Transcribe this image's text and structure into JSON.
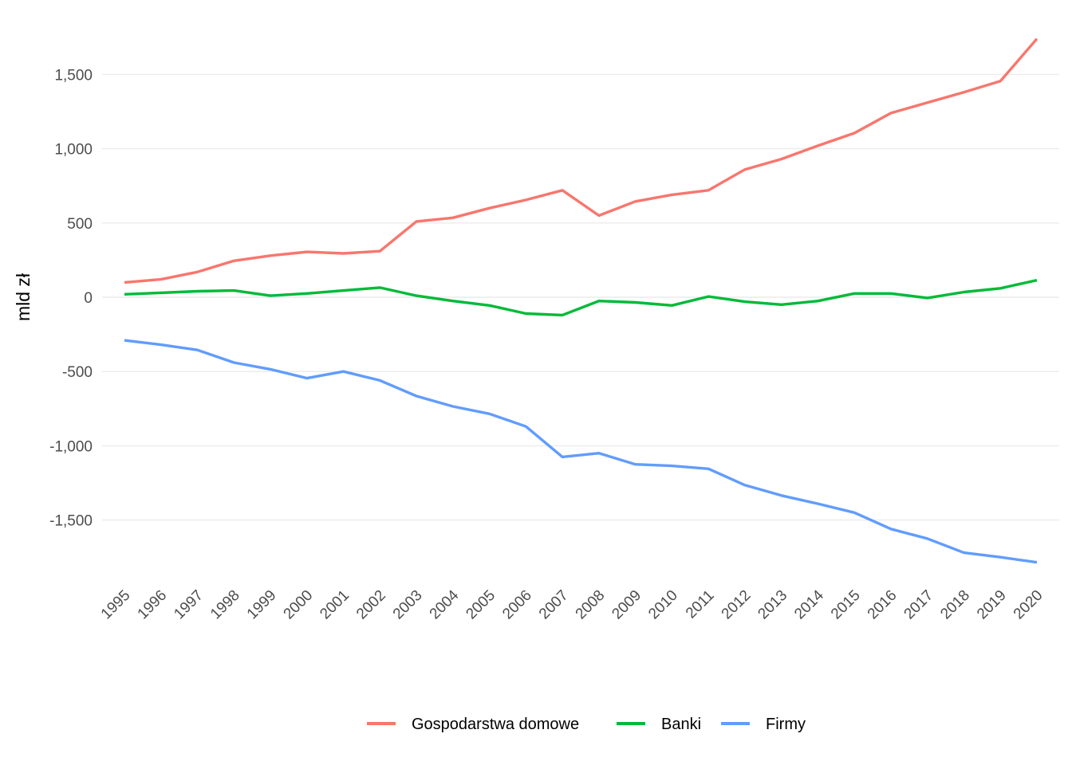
{
  "chart_data": {
    "type": "line",
    "title": "",
    "xlabel": "",
    "ylabel": "mld zł",
    "x": [
      "1995",
      "1996",
      "1997",
      "1998",
      "1999",
      "2000",
      "2001",
      "2002",
      "2003",
      "2004",
      "2005",
      "2006",
      "2007",
      "2008",
      "2009",
      "2010",
      "2011",
      "2012",
      "2013",
      "2014",
      "2015",
      "2016",
      "2017",
      "2018",
      "2019",
      "2020"
    ],
    "ylim": [
      -1900,
      1750
    ],
    "yticks": [
      -1500,
      -1000,
      -500,
      0,
      500,
      1000,
      1500
    ],
    "ytick_labels": [
      "-1,500",
      "-1,000",
      "-500",
      "0",
      "500",
      "1,000",
      "1,500"
    ],
    "grid": true,
    "legend_position": "bottom",
    "series": [
      {
        "name": "Gospodarstwa domowe",
        "color": "#F8766D",
        "values": [
          100,
          120,
          170,
          245,
          280,
          305,
          295,
          310,
          510,
          535,
          600,
          655,
          720,
          550,
          645,
          690,
          720,
          860,
          930,
          1020,
          1105,
          1240,
          1310,
          1380,
          1455,
          1740
        ]
      },
      {
        "name": "Banki",
        "color": "#00BA38",
        "values": [
          20,
          30,
          40,
          45,
          10,
          25,
          45,
          65,
          10,
          -25,
          -55,
          -110,
          -120,
          -25,
          -35,
          -55,
          5,
          -30,
          -50,
          -25,
          25,
          25,
          -5,
          35,
          60,
          115
        ]
      },
      {
        "name": "Firmy",
        "color": "#619CFF",
        "values": [
          -290,
          -320,
          -355,
          -440,
          -485,
          -545,
          -500,
          -560,
          -665,
          -735,
          -785,
          -870,
          -1075,
          -1050,
          -1125,
          -1135,
          -1155,
          -1265,
          -1335,
          -1390,
          -1450,
          -1560,
          -1625,
          -1720,
          -1750,
          -1785
        ]
      }
    ]
  }
}
